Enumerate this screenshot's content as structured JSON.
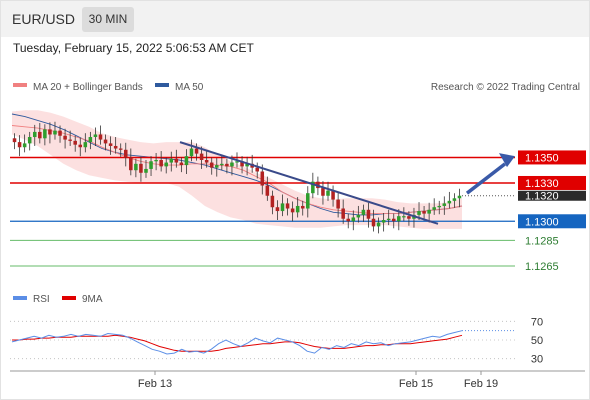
{
  "header": {
    "symbol": "EUR/USD",
    "timeframe": "30 MIN",
    "datetime": "Tuesday, February 15, 2022 5:06:53 AM CET"
  },
  "legend": {
    "ma20_label": "MA 20 + Bollinger Bands",
    "ma50_label": "MA 50",
    "credit": "Research © 2022 Trading Central",
    "rsi_label": "RSI",
    "ma9_label": "9MA"
  },
  "colors": {
    "ma20": "#f08080",
    "ma50": "#2f5a9e",
    "bands": "#fbdada",
    "bull": "#2e9e2e",
    "bear": "#b22222",
    "resistance": "#e00000",
    "pivot": "#1565c0",
    "support": "#66bb6a",
    "rsi": "#5b8ee6",
    "rsi_ma": "#e00000",
    "trend": "#3a4a8a"
  },
  "chart_data": {
    "type": "candlestick",
    "x_tick_labels": [
      "Feb 13",
      "Feb 15",
      "Feb 19"
    ],
    "price_range": [
      1.1254,
      1.1395
    ],
    "levels": [
      {
        "label": "1.1350",
        "value": 1.135,
        "kind": "resistance",
        "boxed": true
      },
      {
        "label": "1.1330",
        "value": 1.133,
        "kind": "resistance",
        "boxed": true
      },
      {
        "label": "1.1320",
        "value": 1.132,
        "kind": "current",
        "boxed": true
      },
      {
        "label": "1.1300",
        "value": 1.13,
        "kind": "pivot",
        "boxed": true
      },
      {
        "label": "1.1285",
        "value": 1.1285,
        "kind": "support",
        "boxed": false
      },
      {
        "label": "1.1265",
        "value": 1.1265,
        "kind": "support",
        "boxed": false
      }
    ],
    "close": [
      1.1362,
      1.1358,
      1.1361,
      1.1366,
      1.137,
      1.1365,
      1.1372,
      1.1368,
      1.1371,
      1.1367,
      1.1364,
      1.1363,
      1.136,
      1.1358,
      1.1362,
      1.1366,
      1.1368,
      1.1364,
      1.1361,
      1.1359,
      1.1357,
      1.1356,
      1.135,
      1.134,
      1.1345,
      1.1338,
      1.1341,
      1.1347,
      1.1348,
      1.1343,
      1.1346,
      1.1349,
      1.1346,
      1.1344,
      1.1351,
      1.1357,
      1.1353,
      1.1348,
      1.1346,
      1.1342,
      1.1344,
      1.1345,
      1.1343,
      1.1346,
      1.1347,
      1.1343,
      1.1345,
      1.1342,
      1.1339,
      1.1328,
      1.132,
      1.1311,
      1.1308,
      1.1314,
      1.131,
      1.1307,
      1.1312,
      1.131,
      1.1322,
      1.1331,
      1.1326,
      1.132,
      1.1324,
      1.1317,
      1.131,
      1.1302,
      1.13,
      1.1303,
      1.1305,
      1.1309,
      1.1302,
      1.1296,
      1.1299,
      1.1301,
      1.1302,
      1.13,
      1.1304,
      1.1304,
      1.1302,
      1.1305,
      1.1308,
      1.1306,
      1.1309,
      1.1311,
      1.1312,
      1.1314,
      1.1316,
      1.1318,
      1.132
    ],
    "ma20": [
      1.1375,
      1.1374,
      1.1373,
      1.1371,
      1.1369,
      1.1366,
      1.1363,
      1.1358,
      1.1354,
      1.135,
      1.1347,
      1.1345,
      1.1344,
      1.1344,
      1.1345,
      1.1345,
      1.1344,
      1.1343,
      1.134,
      1.1335,
      1.133,
      1.1323,
      1.1318,
      1.1314,
      1.1311,
      1.1309,
      1.1308,
      1.1307,
      1.1306,
      1.1306,
      1.1306,
      1.1307,
      1.1308,
      1.1309,
      1.131,
      1.1312
    ],
    "ma50": [
      1.1384,
      1.1382,
      1.1379,
      1.1376,
      1.1372,
      1.1367,
      1.1362,
      1.1357,
      1.1354,
      1.1352,
      1.1351,
      1.135,
      1.1349,
      1.1348,
      1.1346,
      1.1344,
      1.1341,
      1.1338,
      1.1335,
      1.1332,
      1.1328,
      1.1323,
      1.1318,
      1.1314,
      1.131,
      1.1307,
      1.1306,
      1.1305,
      1.1305,
      1.1306,
      1.1306,
      1.1307,
      1.1308,
      1.1309,
      1.131,
      1.1312
    ],
    "bb_upper": [
      1.1386,
      1.1387,
      1.1387,
      1.1385,
      1.1382,
      1.1378,
      1.1374,
      1.1369,
      1.1366,
      1.1364,
      1.1362,
      1.1361,
      1.1362,
      1.1362,
      1.1362,
      1.1358,
      1.1352,
      1.1347,
      1.1343,
      1.1338,
      1.1334,
      1.1329,
      1.1324,
      1.132,
      1.1318,
      1.1317,
      1.1318,
      1.1318,
      1.1318,
      1.1317,
      1.1315,
      1.1314,
      1.1314,
      1.1314,
      1.1315,
      1.1318
    ],
    "bb_lower": [
      1.1368,
      1.1364,
      1.1359,
      1.1352,
      1.1345,
      1.134,
      1.1336,
      1.1334,
      1.1332,
      1.1331,
      1.133,
      1.133,
      1.133,
      1.1327,
      1.132,
      1.1312,
      1.1307,
      1.1303,
      1.1301,
      1.1298,
      1.1297,
      1.1296,
      1.1295,
      1.1295,
      1.1295,
      1.1296,
      1.1297,
      1.1297,
      1.1297,
      1.1297,
      1.1296,
      1.1295,
      1.1294,
      1.1294,
      1.1294,
      1.1294
    ],
    "rsi": {
      "range": [
        20,
        80
      ],
      "ticks": [
        "70",
        "50",
        "30"
      ],
      "rsi": [
        48,
        50,
        52,
        54,
        52,
        55,
        53,
        54,
        56,
        54,
        56,
        55,
        54,
        57,
        56,
        55,
        52,
        48,
        44,
        40,
        38,
        35,
        36,
        40,
        37,
        38,
        36,
        40,
        46,
        50,
        46,
        43,
        47,
        52,
        49,
        47,
        52,
        50,
        48,
        44,
        38,
        36,
        42,
        40,
        44,
        42,
        46,
        44,
        48,
        46,
        47,
        44,
        46,
        47,
        48,
        50,
        52,
        54,
        53,
        56,
        58,
        60
      ],
      "ma9": [
        50,
        50,
        51,
        51,
        52,
        52,
        53,
        53,
        53,
        54,
        54,
        54,
        54,
        54,
        55,
        54,
        53,
        51,
        49,
        46,
        43,
        41,
        39,
        38,
        38,
        38,
        38,
        38,
        39,
        41,
        42,
        43,
        44,
        45,
        46,
        46,
        47,
        48,
        48,
        47,
        45,
        43,
        42,
        41,
        41,
        41,
        42,
        43,
        44,
        44,
        45,
        45,
        46,
        46,
        46,
        47,
        48,
        49,
        50,
        51,
        53,
        55
      ]
    }
  }
}
